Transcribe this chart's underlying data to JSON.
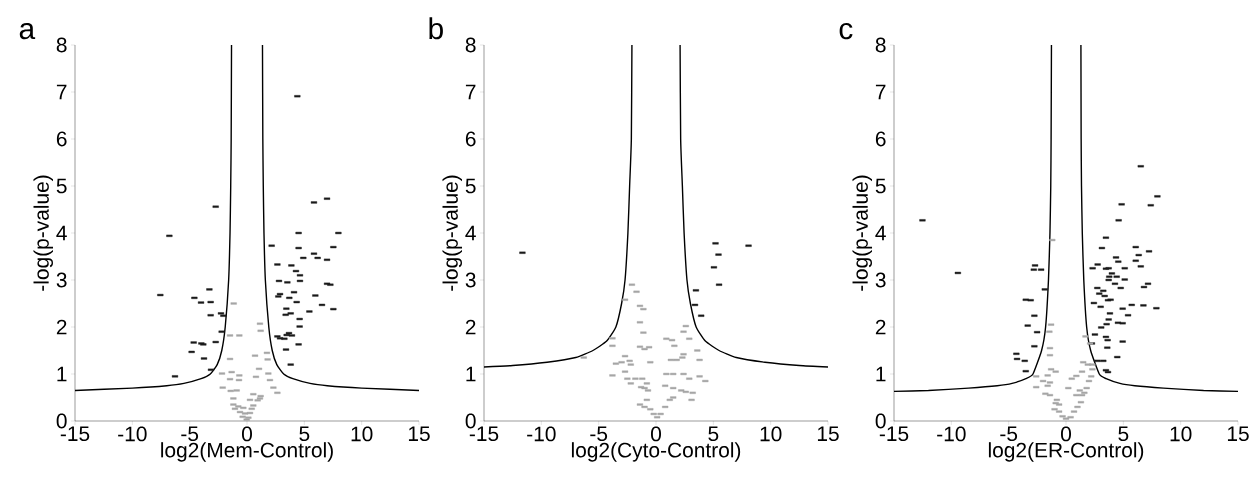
{
  "chart_data": [
    {
      "type": "scatter",
      "title": "a",
      "xlabel": "log2(Mem-Control)",
      "ylabel": "-log(p-value)",
      "xlim": [
        -15,
        15
      ],
      "ylim": [
        0,
        8
      ],
      "xticks": [
        -15,
        -10,
        -5,
        0,
        5,
        10,
        15
      ],
      "yticks": [
        0,
        1,
        2,
        3,
        4,
        5,
        6,
        7,
        8
      ],
      "series": [
        {
          "marker": "square",
          "color": "#1a1a1a",
          "x": [
            4.39,
            -2.73,
            5.84,
            6.98,
            -6.77,
            4.5,
            7.97,
            2.15,
            4.5,
            7.53,
            5.84,
            4.91,
            6.16,
            6.98,
            2.65,
            3.87,
            4.27,
            4.62,
            -3.28,
            2.79,
            3.52,
            4.62,
            6.98,
            7.27,
            -7.56,
            2.88,
            4.1,
            2.73,
            3.69,
            5.96,
            -4.59,
            -4.01,
            -3.17,
            4.33,
            6.54,
            3.43,
            7.53,
            -3.17,
            -2.27,
            -2.06,
            3.37,
            3.81,
            5.44,
            4.59,
            4.59,
            -2.21,
            3.66,
            3.46,
            3.92,
            2.65,
            2.88,
            3.26,
            4.5,
            -4.65,
            -3.98,
            -2.73,
            -3.81,
            3.4,
            -4.83,
            -3.75,
            3.81,
            -3.14,
            -6.28
          ],
          "values": [
            6.91,
            4.56,
            4.65,
            4.73,
            3.94,
            4.0,
            4.0,
            3.73,
            3.68,
            3.7,
            3.56,
            3.47,
            3.47,
            3.43,
            3.33,
            3.31,
            3.19,
            3.1,
            2.8,
            2.98,
            2.95,
            2.98,
            2.92,
            2.9,
            2.68,
            2.7,
            2.74,
            2.65,
            2.62,
            2.67,
            2.62,
            2.52,
            2.53,
            2.53,
            2.47,
            2.39,
            2.38,
            2.25,
            2.29,
            2.24,
            2.26,
            2.29,
            2.33,
            2.17,
            2.01,
            1.9,
            1.87,
            1.83,
            1.82,
            1.8,
            1.76,
            1.75,
            1.63,
            1.67,
            1.65,
            1.68,
            1.63,
            1.52,
            1.47,
            1.33,
            1.2,
            1.09,
            0.95
          ]
        },
        {
          "marker": "square",
          "color": "#a6a6a6",
          "x": [
            -1.16,
            -0.67,
            -1.48,
            1.13,
            1.19,
            -1.48,
            0.7,
            1.74,
            1.8,
            -2.18,
            -1.34,
            -0.67,
            1.05,
            0.78,
            1.86,
            -2.12,
            -1.48,
            -0.7,
            2.0,
            2.3,
            2.65,
            -1.42,
            -0.9,
            0.55,
            1.19,
            -1.19,
            0.26,
            0.93,
            -1.19,
            -0.76,
            -0.32,
            0.55,
            -0.61,
            -0.17,
            0.26,
            -0.38,
            0.12,
            -0.03,
            0.41,
            -1.05,
            1.13
          ],
          "values": [
            2.5,
            1.82,
            1.82,
            2.07,
            1.92,
            1.32,
            1.39,
            1.45,
            1.31,
            1.01,
            1.04,
            0.97,
            1.11,
            0.94,
            1.01,
            0.71,
            0.89,
            0.87,
            0.87,
            0.71,
            0.6,
            0.64,
            0.65,
            0.57,
            0.53,
            0.48,
            0.45,
            0.44,
            0.35,
            0.31,
            0.28,
            0.33,
            0.19,
            0.16,
            0.17,
            0.09,
            0.07,
            0.03,
            0.26,
            0.26,
            0.48
          ]
        },
        {
          "type": "line",
          "color": "#000000",
          "x": [
            1.35,
            1.38,
            1.42,
            1.48,
            1.6,
            1.9,
            2.2,
            2.6,
            3.2,
            4.0,
            5.5,
            7.0,
            10.0,
            15.0
          ],
          "values": [
            8,
            6,
            5,
            4,
            3,
            2,
            1.5,
            1.2,
            1.0,
            0.9,
            0.8,
            0.75,
            0.7,
            0.65
          ]
        },
        {
          "type": "line",
          "color": "#000000",
          "x": [
            -1.35,
            -1.38,
            -1.42,
            -1.48,
            -1.6,
            -1.9,
            -2.2,
            -2.6,
            -3.2,
            -4.0,
            -5.5,
            -7.0,
            -10.0,
            -15.0
          ],
          "values": [
            8,
            6,
            5,
            4,
            3,
            2,
            1.5,
            1.2,
            1.0,
            0.9,
            0.8,
            0.75,
            0.7,
            0.65
          ]
        }
      ]
    },
    {
      "type": "scatter",
      "title": "b",
      "xlabel": "log2(Cyto-Control)",
      "ylabel": "-log(p-value)",
      "xlim": [
        -15,
        15
      ],
      "ylim": [
        0,
        8
      ],
      "xticks": [
        -15,
        -10,
        -5,
        0,
        5,
        10,
        15
      ],
      "yticks": [
        0,
        1,
        2,
        3,
        4,
        5,
        6,
        7,
        8
      ],
      "series": [
        {
          "marker": "square",
          "color": "#1a1a1a",
          "x": [
            -11.65,
            5.19,
            8.07,
            5.45,
            5.05,
            5.5,
            3.48,
            3.4,
            3.94
          ],
          "values": [
            3.58,
            3.78,
            3.73,
            3.54,
            3.27,
            2.9,
            2.78,
            2.47,
            2.24
          ]
        },
        {
          "marker": "square",
          "color": "#a6a6a6",
          "x": [
            -2.1,
            -1.7,
            -2.7,
            -1.4,
            -1.1,
            -1.4,
            -1.1,
            -3.8,
            -3.8,
            -1.4,
            -0.6,
            -1.0,
            -6.3,
            -2.7,
            -3.0,
            -3.5,
            -2.3,
            -2.2,
            -2.7,
            -3.8,
            -2.5,
            -1.8,
            -1.2,
            -0.5,
            -0.8,
            -2.2,
            -1.3,
            -1.0,
            -0.7,
            -0.8,
            -1.4,
            -1.0,
            -0.5,
            -0.2,
            0.1,
            0.4,
            0.8,
            1.2,
            1.5,
            0.8,
            1.5,
            2.2,
            2.6,
            3.2,
            3.1,
            0.9,
            1.5,
            2.4,
            2.9,
            3.8,
            4.3,
            1.3,
            1.8,
            2.3,
            2.4,
            3.6,
            2.4,
            2.6,
            2.9,
            1.4,
            0.9,
            1.6,
            3.8
          ],
          "values": [
            2.9,
            2.75,
            2.58,
            2.45,
            2.38,
            2.1,
            1.88,
            1.76,
            1.6,
            1.58,
            1.57,
            1.53,
            1.35,
            1.38,
            1.25,
            1.22,
            1.28,
            1.2,
            1.05,
            0.97,
            0.9,
            0.9,
            0.9,
            1.25,
            0.8,
            0.8,
            0.72,
            0.7,
            0.65,
            0.45,
            0.35,
            0.3,
            0.25,
            0.15,
            0.08,
            0.15,
            0.3,
            0.45,
            0.5,
            0.75,
            0.7,
            0.65,
            0.62,
            0.6,
            0.45,
            1.0,
            1.0,
            1.0,
            0.9,
            0.95,
            0.85,
            1.3,
            1.3,
            1.35,
            1.42,
            1.5,
            1.9,
            2.02,
            1.75,
            1.72,
            1.75,
            1.6,
            1.3
          ]
        },
        {
          "type": "line",
          "color": "#000000",
          "x": [
            2.1,
            2.15,
            2.3,
            2.45,
            2.7,
            3.0,
            3.5,
            4.3,
            5.5,
            7.0,
            9.5,
            12.5,
            15.0
          ],
          "values": [
            8,
            6,
            5,
            4,
            3,
            2.5,
            2,
            1.7,
            1.5,
            1.35,
            1.25,
            1.18,
            1.15
          ]
        },
        {
          "type": "line",
          "color": "#000000",
          "x": [
            -2.1,
            -2.15,
            -2.3,
            -2.45,
            -2.7,
            -3.0,
            -3.5,
            -4.3,
            -5.5,
            -7.0,
            -9.5,
            -12.5,
            -15.0
          ],
          "values": [
            8,
            6,
            5,
            4,
            3,
            2.5,
            2,
            1.7,
            1.5,
            1.35,
            1.25,
            1.18,
            1.15
          ]
        }
      ]
    },
    {
      "type": "scatter",
      "title": "c",
      "xlabel": "log2(ER-Control)",
      "ylabel": "-log(p-value)",
      "xlim": [
        -15,
        15
      ],
      "ylim": [
        0,
        8
      ],
      "xticks": [
        -15,
        -10,
        -5,
        0,
        5,
        10,
        15
      ],
      "yticks": [
        0,
        1,
        2,
        3,
        4,
        5,
        6,
        7,
        8
      ],
      "series": [
        {
          "marker": "square",
          "color": "#1a1a1a",
          "x": [
            -12.52,
            -9.43,
            6.52,
            7.97,
            4.85,
            7.39,
            4.59,
            3.48,
            3.13,
            6.08,
            7.24,
            6.34,
            4.36,
            6.08,
            4.56,
            2.76,
            2.32,
            3.48,
            3.72,
            5.12,
            6.52,
            4.0,
            3.77,
            4.42,
            3.72,
            5.12,
            4.27,
            7.15,
            6.8,
            2.73,
            3.25,
            4.77,
            2.9,
            3.37,
            3.66,
            3.89,
            2.43,
            3.02,
            5.73,
            6.75,
            7.88,
            4.94,
            3.83,
            5.41,
            3.72,
            3.54,
            4.53,
            4.94,
            3.07,
            2.52,
            3.48,
            3.63,
            4.94,
            3.6,
            2.26,
            4.47,
            2.73,
            3.25,
            3.48,
            3.66,
            -2.7,
            -2.81,
            -2.17,
            -1.85,
            -3.51,
            -3.08,
            -2.76,
            -3.34,
            -2.52,
            -2.76,
            -4.33,
            -4.27,
            -3.6,
            -3.51
          ],
          "values": [
            4.27,
            3.15,
            5.42,
            4.78,
            4.61,
            4.59,
            4.27,
            3.9,
            3.68,
            3.7,
            3.61,
            3.53,
            3.48,
            3.41,
            3.39,
            3.33,
            3.25,
            3.24,
            3.25,
            3.25,
            3.29,
            3.14,
            3.07,
            3.07,
            3.0,
            3.01,
            2.92,
            2.92,
            2.85,
            2.83,
            2.77,
            2.83,
            2.71,
            2.66,
            2.57,
            2.58,
            2.51,
            2.43,
            2.47,
            2.46,
            2.4,
            2.39,
            2.29,
            2.25,
            2.16,
            2.06,
            2.09,
            2.08,
            1.99,
            1.84,
            1.79,
            1.72,
            1.69,
            1.56,
            1.65,
            1.36,
            1.28,
            1.28,
            1.08,
            1.04,
            3.31,
            3.22,
            3.22,
            2.8,
            2.58,
            2.57,
            2.24,
            2.03,
            1.89,
            1.59,
            1.43,
            1.32,
            1.28,
            1.06
          ]
        },
        {
          "marker": "square",
          "color": "#a6a6a6",
          "x": [
            -1.2,
            -1.3,
            -1.45,
            -1.4,
            -1.4,
            -1.3,
            -0.9,
            -1.6,
            -2.6,
            -2.0,
            -2.6,
            -1.4,
            -1.6,
            -1.8,
            -1.4,
            -0.8,
            -0.9,
            -0.6,
            -1.0,
            -0.6,
            -0.3,
            0.0,
            0.4,
            0.7,
            1.0,
            1.3,
            1.4,
            1.6,
            1.2,
            1.8,
            0.5,
            0.9,
            1.4,
            2.0,
            2.2,
            2.3,
            1.9,
            1.5,
            1.7,
            2.1,
            2.3,
            0.2,
            0.9
          ],
          "values": [
            3.85,
            2.05,
            1.9,
            1.55,
            1.4,
            1.1,
            1.05,
            0.97,
            0.95,
            0.85,
            0.72,
            0.82,
            0.75,
            0.58,
            0.55,
            0.45,
            0.38,
            0.35,
            0.25,
            0.2,
            0.1,
            0.05,
            0.08,
            0.2,
            0.3,
            0.4,
            0.55,
            0.6,
            0.65,
            0.7,
            0.9,
            0.96,
            1.05,
            0.85,
            0.95,
            1.1,
            1.2,
            1.25,
            1.8,
            1.65,
            1.2,
            0.7,
            0.55
          ]
        },
        {
          "type": "line",
          "color": "#000000",
          "x": [
            1.3,
            1.32,
            1.35,
            1.42,
            1.55,
            1.8,
            2.15,
            2.9,
            3.5,
            4.7,
            6.0,
            8.5,
            12.0,
            15.0
          ],
          "values": [
            8,
            6,
            5,
            4,
            3,
            2,
            1.5,
            1.0,
            0.9,
            0.8,
            0.75,
            0.7,
            0.65,
            0.63
          ]
        },
        {
          "type": "line",
          "color": "#000000",
          "x": [
            -1.27,
            -1.3,
            -1.33,
            -1.4,
            -1.53,
            -1.78,
            -2.13,
            -2.88,
            -3.5,
            -4.7,
            -6.0,
            -8.5,
            -12.0,
            -15.0
          ],
          "values": [
            8,
            6,
            5,
            4,
            3,
            2,
            1.5,
            1.0,
            0.9,
            0.8,
            0.75,
            0.7,
            0.65,
            0.63
          ]
        }
      ]
    }
  ]
}
